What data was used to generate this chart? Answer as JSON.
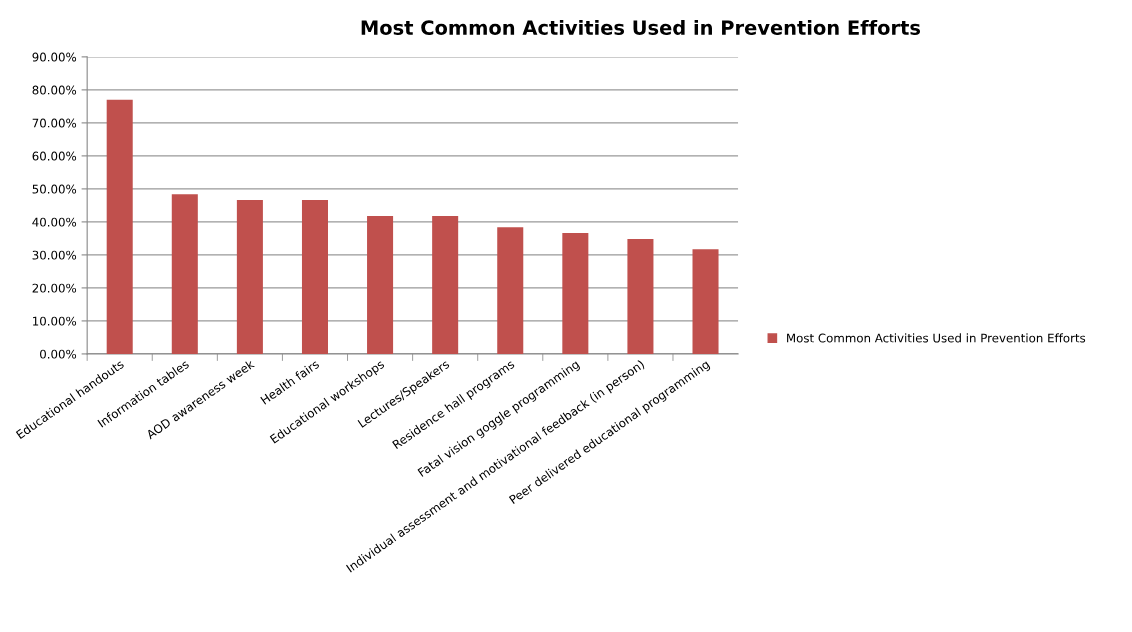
{
  "chart_data": {
    "type": "bar",
    "title": "Most Common Activities Used in Prevention Efforts",
    "categories": [
      "Educational handouts",
      "Information tables",
      "AOD awareness week",
      "Health fairs",
      "Educational workshops",
      "Lectures/Speakers",
      "Residence hall programs",
      "Fatal vision goggle programming",
      "Individual assessment and motivational feedback (in person)",
      "Peer delivered educational programming"
    ],
    "series": [
      {
        "name": "Most Common Activities Used in Prevention Efforts",
        "color": "#c0504d",
        "values": [
          77.0,
          48.4,
          46.6,
          46.6,
          41.8,
          41.8,
          38.4,
          36.6,
          34.8,
          31.7
        ]
      }
    ],
    "ylim": [
      0,
      90
    ],
    "yticks": [
      {
        "value": 0,
        "label": "0.00%"
      },
      {
        "value": 10,
        "label": "10.00%"
      },
      {
        "value": 20,
        "label": "20.00%"
      },
      {
        "value": 30,
        "label": "30.00%"
      },
      {
        "value": 40,
        "label": "40.00%"
      },
      {
        "value": 50,
        "label": "50.00%"
      },
      {
        "value": 60,
        "label": "60.00%"
      },
      {
        "value": 70,
        "label": "70.00%"
      },
      {
        "value": 80,
        "label": "80.00%"
      },
      {
        "value": 90,
        "label": "90.00%"
      }
    ],
    "grid": "y",
    "legend": "right"
  }
}
